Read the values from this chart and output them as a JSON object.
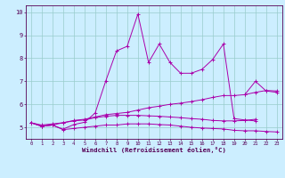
{
  "x": [
    0,
    1,
    2,
    3,
    4,
    5,
    6,
    7,
    8,
    9,
    10,
    11,
    12,
    13,
    14,
    15,
    16,
    17,
    18,
    19,
    20,
    21,
    22,
    23
  ],
  "line1": [
    5.2,
    5.05,
    5.1,
    5.2,
    5.3,
    5.35,
    5.45,
    5.55,
    5.6,
    5.65,
    5.75,
    5.85,
    5.92,
    6.0,
    6.05,
    6.12,
    6.2,
    6.3,
    6.38,
    6.38,
    6.42,
    6.52,
    6.6,
    6.58
  ],
  "line2": [
    5.2,
    5.05,
    5.1,
    4.9,
    4.95,
    5.0,
    5.05,
    5.1,
    5.1,
    5.15,
    5.15,
    5.15,
    5.12,
    5.1,
    5.05,
    5.0,
    4.97,
    4.95,
    4.93,
    4.87,
    4.85,
    4.85,
    4.82,
    4.8
  ],
  "line3": [
    5.2,
    5.1,
    5.15,
    5.2,
    5.28,
    5.32,
    5.42,
    5.48,
    5.52,
    5.52,
    5.52,
    5.5,
    5.48,
    5.45,
    5.42,
    5.38,
    5.35,
    5.3,
    5.28,
    5.28,
    5.3,
    5.35,
    null,
    null
  ],
  "line4": [
    5.2,
    5.05,
    5.1,
    4.92,
    5.12,
    5.22,
    5.62,
    7.02,
    8.32,
    8.52,
    9.92,
    7.82,
    8.62,
    7.82,
    7.35,
    7.35,
    7.52,
    7.95,
    8.62,
    5.38,
    5.32,
    5.28,
    null,
    null
  ],
  "line5": [
    null,
    null,
    null,
    null,
    null,
    null,
    null,
    null,
    null,
    null,
    null,
    null,
    null,
    null,
    null,
    null,
    null,
    null,
    null,
    null,
    6.42,
    7.0,
    6.58,
    6.52
  ],
  "color": "#aa00aa",
  "bg_color": "#cceeff",
  "grid_color": "#99cccc",
  "xlabel": "Windchill (Refroidissement éolien,°C)",
  "ylim": [
    4.5,
    10.3
  ],
  "yticks": [
    5,
    6,
    7,
    8,
    9,
    10
  ],
  "xticks": [
    0,
    1,
    2,
    3,
    4,
    5,
    6,
    7,
    8,
    9,
    10,
    11,
    12,
    13,
    14,
    15,
    16,
    17,
    18,
    19,
    20,
    21,
    22,
    23
  ]
}
